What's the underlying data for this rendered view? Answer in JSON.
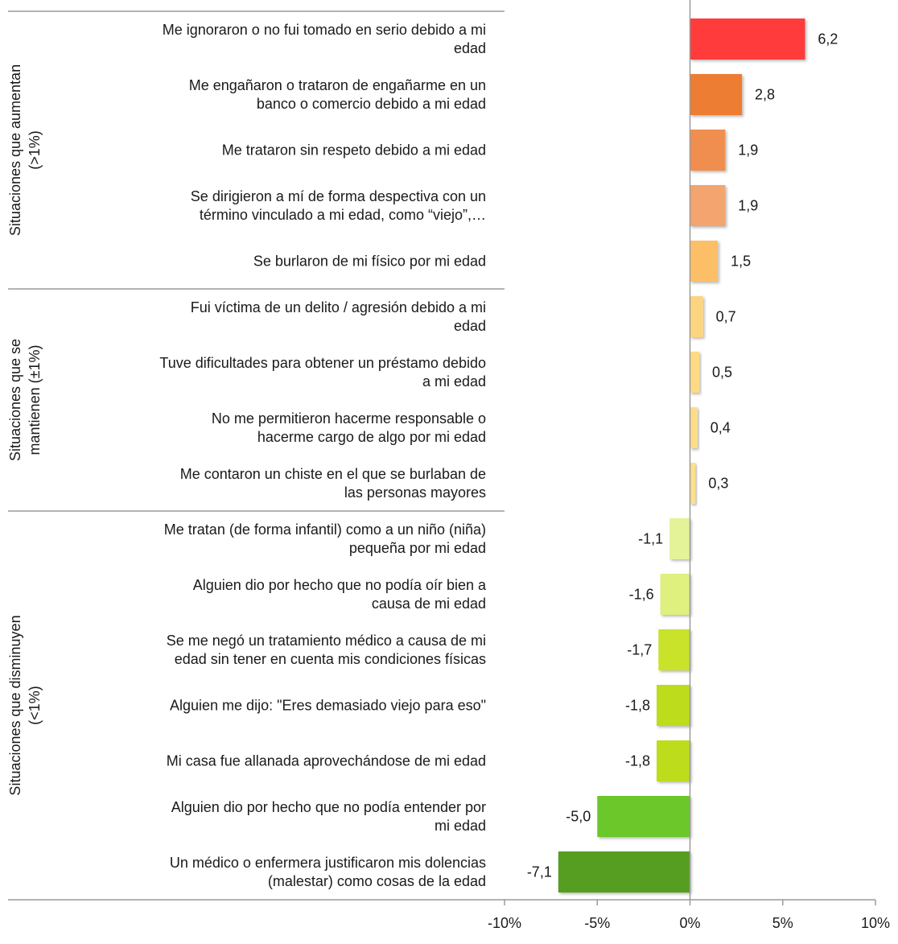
{
  "chart_data": {
    "type": "bar",
    "orientation": "horizontal",
    "xlim": [
      -10,
      10
    ],
    "xticks": [
      -10,
      -5,
      0,
      5,
      10
    ],
    "xtick_labels": [
      "-10%",
      "-5%",
      "0%",
      "5%",
      "10%"
    ],
    "groups": [
      {
        "label_lines": [
          "Situaciones que aumentan",
          "(>1%)"
        ],
        "start": 0,
        "end": 4
      },
      {
        "label_lines": [
          "Situaciones que se",
          "mantienen (±1%)"
        ],
        "start": 5,
        "end": 8
      },
      {
        "label_lines": [
          "Situaciones que disminuyen",
          "(<1%)"
        ],
        "start": 9,
        "end": 15
      }
    ],
    "categories": [
      [
        "Me ignoraron o no fui tomado en serio debido a mi",
        "edad"
      ],
      [
        "Me engañaron o trataron de engañarme en un",
        "banco o comercio debido a mi edad"
      ],
      [
        "Me trataron sin respeto debido a mi edad"
      ],
      [
        "Se dirigieron a mí de forma despectiva con un",
        "término vinculado a mi edad, como “viejo”,…"
      ],
      [
        "Se burlaron de mi físico por mi edad"
      ],
      [
        "Fui víctima de un delito / agresión debido a mi",
        "edad"
      ],
      [
        "Tuve dificultades para obtener un préstamo debido",
        "a mi edad"
      ],
      [
        "No me permitieron hacerme responsable o",
        "hacerme cargo de algo por mi edad"
      ],
      [
        "Me contaron un chiste en el que se burlaban de",
        "las personas mayores"
      ],
      [
        "Me tratan (de forma infantil) como a un niño (niña)",
        "pequeña por mi edad"
      ],
      [
        "Alguien dio por hecho que no podía oír bien a",
        "causa de mi edad"
      ],
      [
        "Se me negó un tratamiento médico a causa de mi",
        "edad sin tener en cuenta mis condiciones físicas"
      ],
      [
        "Alguien me dijo: \"Eres demasiado viejo para eso\""
      ],
      [
        "Mi casa fue allanada aprovechándose de mi edad"
      ],
      [
        "Alguien dio por hecho que no podía entender por",
        "mi edad"
      ],
      [
        "Un médico o enfermera justificaron mis dolencias",
        "(malestar) como cosas de la edad"
      ]
    ],
    "values": [
      6.2,
      2.8,
      1.9,
      1.9,
      1.5,
      0.7,
      0.5,
      0.4,
      0.3,
      -1.1,
      -1.6,
      -1.7,
      -1.8,
      -1.8,
      -5.0,
      -7.1
    ],
    "value_labels": [
      "6,2",
      "2,8",
      "1,9",
      "1,9",
      "1,5",
      "0,7",
      "0,5",
      "0,4",
      "0,3",
      "-1,1",
      "-1,6",
      "-1,7",
      "-1,8",
      "-1,8",
      "-5,0",
      "-7,1"
    ],
    "bar_colors": [
      "#ff3b3b",
      "#ed7d31",
      "#f08e4f",
      "#f4a46e",
      "#fcbf68",
      "#fdd580",
      "#fdda84",
      "#fddd88",
      "#fddf8c",
      "#e4f397",
      "#dff07f",
      "#c9e229",
      "#bddd1c",
      "#bddd1c",
      "#6cc72a",
      "#559e24"
    ]
  }
}
